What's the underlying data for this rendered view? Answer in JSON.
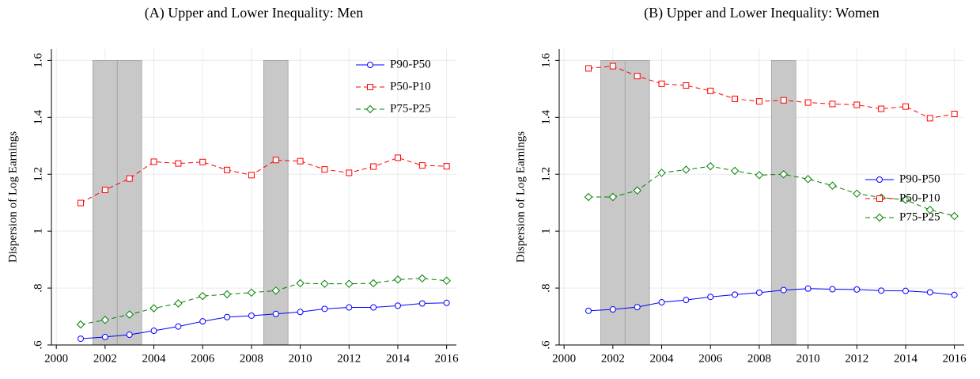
{
  "chart_data": [
    {
      "type": "line",
      "title": "(A) Upper and Lower Inequality: Men",
      "y_label": "Dispersion of Log Earnings",
      "x": [
        2001,
        2002,
        2003,
        2004,
        2005,
        2006,
        2007,
        2008,
        2009,
        2010,
        2011,
        2012,
        2013,
        2014,
        2015,
        2016
      ],
      "series": [
        {
          "name": "P90-P50",
          "color": "#0000ff",
          "marker": "circle",
          "dash": false,
          "values": [
            0.622,
            0.628,
            0.636,
            0.65,
            0.665,
            0.683,
            0.698,
            0.703,
            0.709,
            0.716,
            0.727,
            0.732,
            0.732,
            0.738,
            0.746,
            0.748
          ]
        },
        {
          "name": "P50-P10",
          "color": "#ff0000",
          "marker": "square",
          "dash": true,
          "values": [
            1.099,
            1.145,
            1.185,
            1.244,
            1.238,
            1.243,
            1.215,
            1.197,
            1.25,
            1.246,
            1.217,
            1.205,
            1.227,
            1.258,
            1.231,
            1.228
          ]
        },
        {
          "name": "P75-P25",
          "color": "#008000",
          "marker": "diamond",
          "dash": true,
          "values": [
            0.672,
            0.688,
            0.707,
            0.729,
            0.746,
            0.772,
            0.778,
            0.784,
            0.791,
            0.817,
            0.815,
            0.815,
            0.817,
            0.83,
            0.834,
            0.826
          ]
        }
      ],
      "shaded_ranges": [
        [
          2001.5,
          2002.5
        ],
        [
          2002.5,
          2003.5
        ],
        [
          2008.5,
          2009.5
        ]
      ],
      "shade_ylim": [
        0.6,
        1.6
      ],
      "xlim": [
        1999.8,
        2016.4
      ],
      "xticks": [
        2000,
        2002,
        2004,
        2006,
        2008,
        2010,
        2012,
        2014,
        2016
      ],
      "ylim": [
        0.6,
        1.64
      ],
      "yticks": [
        {
          "value": 0.6,
          "label": ".6"
        },
        {
          "value": 0.8,
          "label": ".8"
        },
        1,
        {
          "value": 1.2,
          "label": "1.2"
        },
        {
          "value": 1.4,
          "label": "1.4"
        },
        {
          "value": 1.6,
          "label": "1.6"
        }
      ],
      "grid": true,
      "legend": "top-right"
    },
    {
      "type": "line",
      "title": "(B) Upper and Lower Inequality: Women",
      "y_label": "Dispersion of Log Earnings",
      "x": [
        2001,
        2002,
        2003,
        2004,
        2005,
        2006,
        2007,
        2008,
        2009,
        2010,
        2011,
        2012,
        2013,
        2014,
        2015,
        2016
      ],
      "series": [
        {
          "name": "P90-P50",
          "color": "#0000ff",
          "marker": "circle",
          "dash": false,
          "values": [
            0.72,
            0.725,
            0.733,
            0.75,
            0.758,
            0.769,
            0.777,
            0.784,
            0.793,
            0.798,
            0.796,
            0.795,
            0.791,
            0.79,
            0.785,
            0.776
          ]
        },
        {
          "name": "P50-P10",
          "color": "#ff0000",
          "marker": "square",
          "dash": true,
          "values": [
            1.572,
            1.58,
            1.545,
            1.518,
            1.512,
            1.493,
            1.465,
            1.456,
            1.46,
            1.452,
            1.447,
            1.444,
            1.43,
            1.438,
            1.397,
            1.412
          ]
        },
        {
          "name": "P75-P25",
          "color": "#008000",
          "marker": "diamond",
          "dash": true,
          "values": [
            1.12,
            1.12,
            1.143,
            1.205,
            1.216,
            1.228,
            1.212,
            1.197,
            1.2,
            1.183,
            1.16,
            1.132,
            1.118,
            1.11,
            1.075,
            1.053
          ]
        }
      ],
      "shaded_ranges": [
        [
          2001.5,
          2002.5
        ],
        [
          2002.5,
          2003.5
        ],
        [
          2008.5,
          2009.5
        ]
      ],
      "shade_ylim": [
        0.6,
        1.6
      ],
      "xlim": [
        1999.8,
        2016.4
      ],
      "xticks": [
        2000,
        2002,
        2004,
        2006,
        2008,
        2010,
        2012,
        2014,
        2016
      ],
      "ylim": [
        0.6,
        1.64
      ],
      "yticks": [
        {
          "value": 0.6,
          "label": ".6"
        },
        {
          "value": 0.8,
          "label": ".8"
        },
        1,
        {
          "value": 1.2,
          "label": "1.2"
        },
        {
          "value": 1.4,
          "label": "1.4"
        },
        {
          "value": 1.6,
          "label": "1.6"
        }
      ],
      "grid": true,
      "legend": "right"
    }
  ]
}
